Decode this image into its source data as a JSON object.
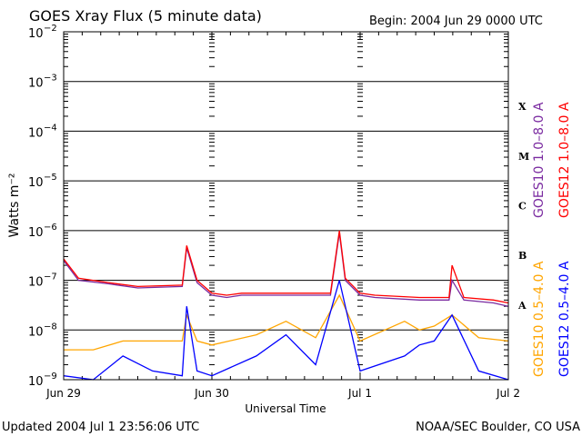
{
  "header": {
    "title": "GOES Xray Flux (5 minute data)",
    "begin": "Begin:  2004 Jun 29 0000 UTC"
  },
  "footer": {
    "updated": "Updated 2004 Jul  1 23:56:06 UTC",
    "credit": "NOAA/SEC Boulder, CO USA"
  },
  "colors": {
    "goes10_long": "#7a2aa0",
    "goes12_long": "#ff0000",
    "goes10_short": "#ffa500",
    "goes12_short": "#0000ff"
  },
  "chart_data": {
    "type": "line",
    "title": "GOES Xray Flux (5 minute data)",
    "xlabel": "Universal Time",
    "ylabel": "Watts m⁻²",
    "y_scale": "log",
    "ylim": [
      1e-09,
      0.01
    ],
    "xlim": [
      "2004-06-29 00:00",
      "2004-07-02 00:00"
    ],
    "grid": true,
    "legend_placement": "right",
    "x_ticks": [
      "Jun 29",
      "Jun 30",
      "Jul 1",
      "Jul 2"
    ],
    "y_ticks": [
      {
        "base": "10",
        "exp": "−2"
      },
      {
        "base": "10",
        "exp": "−3"
      },
      {
        "base": "10",
        "exp": "−4"
      },
      {
        "base": "10",
        "exp": "−5"
      },
      {
        "base": "10",
        "exp": "−6"
      },
      {
        "base": "10",
        "exp": "−7"
      },
      {
        "base": "10",
        "exp": "−8"
      },
      {
        "base": "10",
        "exp": "−9"
      }
    ],
    "flare_classes": [
      "X",
      "M",
      "C",
      "B",
      "A"
    ],
    "series": [
      {
        "name": "GOES10 1.0–8.0 A",
        "color": "#7a2aa0",
        "x": [
          0.0,
          0.1,
          0.3,
          0.5,
          0.8,
          0.83,
          0.9,
          1.0,
          1.1,
          1.2,
          1.5,
          1.8,
          1.86,
          1.9,
          2.0,
          2.1,
          2.4,
          2.6,
          2.62,
          2.7,
          2.9,
          3.0
        ],
        "y": [
          2.5e-07,
          1e-07,
          8.5e-08,
          7e-08,
          7.5e-08,
          4.5e-07,
          9e-08,
          5e-08,
          4.5e-08,
          5e-08,
          5e-08,
          5e-08,
          9e-07,
          1e-07,
          5e-08,
          4.5e-08,
          4e-08,
          4e-08,
          1e-07,
          4e-08,
          3.5e-08,
          3e-08
        ]
      },
      {
        "name": "GOES12 1.0–8.0 A",
        "color": "#ff0000",
        "x": [
          0.0,
          0.1,
          0.3,
          0.5,
          0.8,
          0.83,
          0.9,
          1.0,
          1.1,
          1.2,
          1.5,
          1.8,
          1.86,
          1.9,
          2.0,
          2.1,
          2.4,
          2.6,
          2.62,
          2.7,
          2.9,
          3.0
        ],
        "y": [
          2.7e-07,
          1.1e-07,
          9e-08,
          7.5e-08,
          8e-08,
          5e-07,
          1e-07,
          5.5e-08,
          5e-08,
          5.5e-08,
          5.5e-08,
          5.5e-08,
          1e-06,
          1.1e-07,
          5.5e-08,
          5e-08,
          4.5e-08,
          4.5e-08,
          2e-07,
          4.5e-08,
          4e-08,
          3.5e-08
        ]
      },
      {
        "name": "GOES10 0.5–4.0 A",
        "color": "#ffa500",
        "x": [
          0.0,
          0.2,
          0.4,
          0.6,
          0.8,
          0.83,
          0.9,
          1.0,
          1.3,
          1.5,
          1.7,
          1.86,
          2.0,
          2.3,
          2.4,
          2.5,
          2.62,
          2.8,
          3.0
        ],
        "y": [
          4e-09,
          4e-09,
          6e-09,
          6e-09,
          6e-09,
          2e-08,
          6e-09,
          5e-09,
          8e-09,
          1.5e-08,
          7e-09,
          5e-08,
          6e-09,
          1.5e-08,
          1e-08,
          1.2e-08,
          2e-08,
          7e-09,
          6e-09
        ]
      },
      {
        "name": "GOES12 0.5–4.0 A",
        "color": "#0000ff",
        "x": [
          0.0,
          0.2,
          0.4,
          0.6,
          0.8,
          0.83,
          0.9,
          1.0,
          1.3,
          1.5,
          1.7,
          1.86,
          2.0,
          2.3,
          2.4,
          2.5,
          2.62,
          2.8,
          3.0
        ],
        "y": [
          1.2e-09,
          1e-09,
          3e-09,
          1.5e-09,
          1.2e-09,
          3e-08,
          1.5e-09,
          1.2e-09,
          3e-09,
          8e-09,
          2e-09,
          1e-07,
          1.5e-09,
          3e-09,
          5e-09,
          6e-09,
          2e-08,
          1.5e-09,
          1e-09
        ]
      }
    ]
  }
}
